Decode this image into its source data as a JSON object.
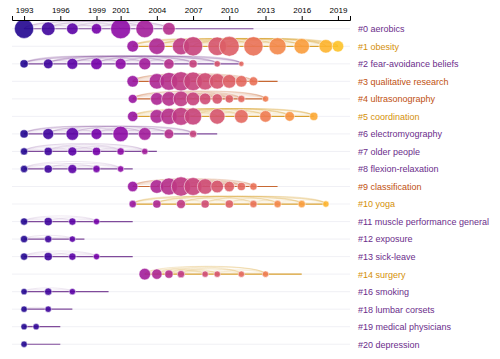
{
  "chart_data": {
    "type": "bubble",
    "xlim": [
      1992,
      2020
    ],
    "xticks": [
      1993,
      1996,
      1999,
      2001,
      2004,
      2007,
      2010,
      2013,
      2016,
      2019
    ],
    "tick_labels": "x",
    "grid": true,
    "categories": [
      "#0 aerobics",
      "#1 obesity",
      "#2 fear-avoidance beliefs",
      "#3 qualitative research",
      "#4 ultrasonography",
      "#5 coordination",
      "#6 electromyography",
      "#7 older people",
      "#8 flexion-relaxation",
      "#9 classification",
      "#10 yoga",
      "#11 muscle performance general",
      "#12 exposure",
      "#13 sick-leave",
      "#14 surgery",
      "#16 smoking",
      "#18 lumbar corsets",
      "#19 medical physicians",
      "#20 depression"
    ],
    "series": [
      {
        "color": "#6b2d8b",
        "x": [
          1993,
          1995,
          1997,
          1999,
          2001,
          2003,
          2005
        ],
        "sizes": [
          28,
          14,
          10,
          8,
          30,
          24,
          12
        ],
        "span": [
          1993,
          2012
        ]
      },
      {
        "color": "#d4900a",
        "x": [
          2002,
          2004,
          2006,
          2007,
          2009,
          2010,
          2012,
          2014,
          2016,
          2018,
          2019
        ],
        "sizes": [
          10,
          20,
          22,
          28,
          26,
          30,
          28,
          22,
          18,
          14,
          10
        ],
        "span": [
          2002,
          2019
        ]
      },
      {
        "color": "#6b2d8b",
        "x": [
          1993,
          1995,
          1997,
          1999,
          2001,
          2003,
          2005,
          2007,
          2009,
          2011
        ],
        "sizes": [
          5,
          7,
          9,
          10,
          9,
          11,
          8,
          5,
          3,
          2
        ],
        "span": [
          1993,
          2011
        ]
      },
      {
        "color": "#c05010",
        "x": [
          2002,
          2004,
          2005,
          2006,
          2007,
          2008,
          2009,
          2010,
          2011,
          2012
        ],
        "sizes": [
          10,
          18,
          24,
          28,
          26,
          22,
          18,
          14,
          10,
          6
        ],
        "span": [
          2002,
          2014
        ]
      },
      {
        "color": "#c05010",
        "x": [
          2002,
          2004,
          2005,
          2006,
          2007,
          2008,
          2009,
          2010,
          2011,
          2013
        ],
        "sizes": [
          6,
          12,
          16,
          18,
          14,
          10,
          8,
          5,
          4,
          3
        ],
        "span": [
          2002,
          2013
        ]
      },
      {
        "color": "#d4900a",
        "x": [
          2002,
          2004,
          2005,
          2006,
          2007,
          2009,
          2011,
          2013,
          2015,
          2017
        ],
        "sizes": [
          8,
          14,
          20,
          24,
          22,
          18,
          14,
          10,
          7,
          5
        ],
        "span": [
          2002,
          2017
        ]
      },
      {
        "color": "#6b2d8b",
        "x": [
          1993,
          1995,
          1997,
          1999,
          2001,
          2003,
          2005,
          2007
        ],
        "sizes": [
          5,
          9,
          12,
          9,
          18,
          12,
          7,
          4
        ],
        "span": [
          1993,
          2009
        ]
      },
      {
        "color": "#6b2d8b",
        "x": [
          1993,
          1995,
          1997,
          1999,
          2001,
          2003
        ],
        "sizes": [
          4,
          5,
          6,
          5,
          4,
          3
        ],
        "span": [
          1993,
          2004
        ]
      },
      {
        "color": "#6b2d8b",
        "x": [
          1993,
          1995,
          1997,
          1999,
          2001
        ],
        "sizes": [
          4,
          5,
          6,
          4,
          3
        ],
        "span": [
          1993,
          2002
        ]
      },
      {
        "color": "#c05010",
        "x": [
          2002,
          2004,
          2005,
          2006,
          2007,
          2008,
          2009,
          2010,
          2011,
          2012
        ],
        "sizes": [
          8,
          14,
          22,
          28,
          24,
          18,
          12,
          8,
          5,
          4
        ],
        "span": [
          2002,
          2014
        ]
      },
      {
        "color": "#d4900a",
        "x": [
          2002,
          2004,
          2006,
          2008,
          2010,
          2012,
          2014,
          2016,
          2018
        ],
        "sizes": [
          4,
          5,
          6,
          5,
          5,
          4,
          4,
          4,
          3
        ],
        "span": [
          2002,
          2018
        ]
      },
      {
        "color": "#6b2d8b",
        "x": [
          1993,
          1995,
          1997,
          1999
        ],
        "sizes": [
          4,
          5,
          4,
          3
        ],
        "span": [
          1993,
          2002
        ]
      },
      {
        "color": "#6b2d8b",
        "x": [
          1993,
          1995,
          1997
        ],
        "sizes": [
          4,
          4,
          3
        ],
        "span": [
          1993,
          1998
        ]
      },
      {
        "color": "#6b2d8b",
        "x": [
          1993,
          1995,
          1997,
          1999
        ],
        "sizes": [
          4,
          5,
          4,
          3
        ],
        "span": [
          1993,
          2002
        ]
      },
      {
        "color": "#d4900a",
        "x": [
          2003,
          2004,
          2005,
          2006,
          2008,
          2009,
          2011,
          2013
        ],
        "sizes": [
          10,
          8,
          5,
          4,
          3,
          3,
          3,
          3
        ],
        "span": [
          2003,
          2016
        ]
      },
      {
        "color": "#6b2d8b",
        "x": [
          1993,
          1995,
          1997
        ],
        "sizes": [
          3,
          4,
          3
        ],
        "span": [
          1993,
          2000
        ]
      },
      {
        "color": "#6b2d8b",
        "x": [
          1993,
          1995
        ],
        "sizes": [
          3,
          3
        ],
        "span": [
          1993,
          1997
        ]
      },
      {
        "color": "#6b2d8b",
        "x": [
          1993,
          1994
        ],
        "sizes": [
          3,
          3
        ],
        "span": [
          1993,
          1996
        ]
      },
      {
        "color": "#6b2d8b",
        "x": [
          1993
        ],
        "sizes": [
          3
        ],
        "span": [
          1993,
          1996
        ]
      }
    ]
  }
}
